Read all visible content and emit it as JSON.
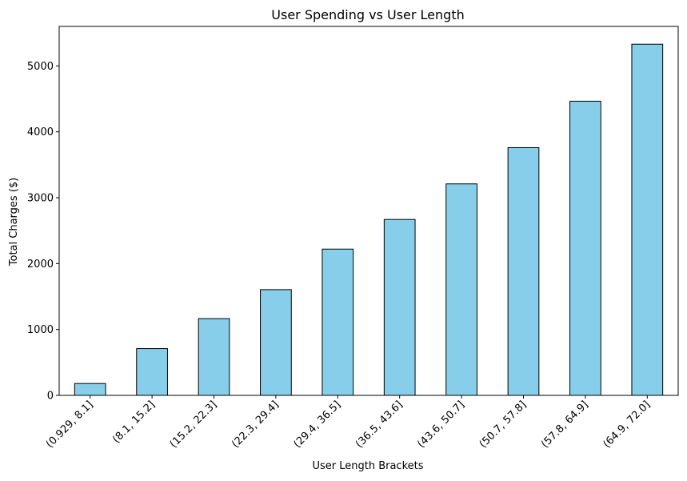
{
  "chart_data": {
    "type": "bar",
    "title": "User Spending vs User Length",
    "xlabel": "User Length Brackets",
    "ylabel": "Total Charges ($)",
    "categories": [
      "(0.929, 8.1]",
      "(8.1, 15.2]",
      "(15.2, 22.3]",
      "(22.3, 29.4]",
      "(29.4, 36.5]",
      "(36.5, 43.6]",
      "(43.6, 50.7]",
      "(50.7, 57.8]",
      "(57.8, 64.9]",
      "(64.9, 72.0]"
    ],
    "values": [
      180,
      710,
      1165,
      1605,
      2220,
      2670,
      3210,
      3760,
      4465,
      5330
    ],
    "ylim": [
      0,
      5600
    ],
    "yticks": [
      0,
      1000,
      2000,
      3000,
      4000,
      5000
    ],
    "grid": false,
    "legend": "none",
    "colors": {
      "bar_fill": "#87CEEB",
      "bar_edge": "#000000"
    }
  }
}
